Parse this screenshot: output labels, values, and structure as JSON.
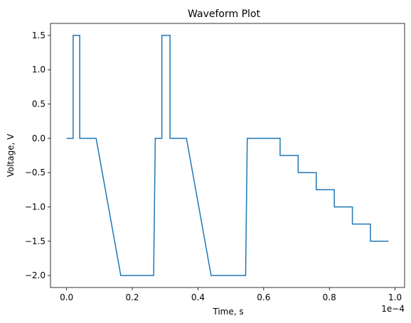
{
  "chart_data": {
    "type": "line",
    "title": "Waveform Plot",
    "xlabel": "Time, s",
    "ylabel": "Voltage, V",
    "x_offset_text": "1e−4",
    "x_scale": 0.0001,
    "xlim": [
      -0.049,
      1.029
    ],
    "ylim": [
      -2.175,
      1.675
    ],
    "x_ticks": [
      0.0,
      0.2,
      0.4,
      0.6,
      0.8,
      1.0
    ],
    "x_tick_labels": [
      "0.0",
      "0.2",
      "0.4",
      "0.6",
      "0.8",
      "1.0"
    ],
    "y_ticks": [
      -2.0,
      -1.5,
      -1.0,
      -0.5,
      0.0,
      0.5,
      1.0,
      1.5
    ],
    "y_tick_labels": [
      "−2.0",
      "−1.5",
      "−1.0",
      "−0.5",
      "0.0",
      "0.5",
      "1.0",
      "1.5"
    ],
    "grid": false,
    "series": [
      {
        "color": "#1f77b4",
        "x": [
          0.0,
          0.02,
          0.02,
          0.04,
          0.04,
          0.09,
          0.165,
          0.265,
          0.27,
          0.27,
          0.29,
          0.29,
          0.315,
          0.315,
          0.365,
          0.44,
          0.545,
          0.55,
          0.55,
          0.65,
          0.65,
          0.705,
          0.705,
          0.76,
          0.76,
          0.815,
          0.815,
          0.87,
          0.87,
          0.925,
          0.925,
          0.98
        ],
        "y": [
          0.0,
          0.0,
          1.5,
          1.5,
          0.0,
          0.0,
          -2.0,
          -2.0,
          0.0,
          0.0,
          0.0,
          1.5,
          1.5,
          0.0,
          0.0,
          -2.0,
          -2.0,
          0.0,
          0.0,
          0.0,
          -0.25,
          -0.25,
          -0.5,
          -0.5,
          -0.75,
          -0.75,
          -1.0,
          -1.0,
          -1.25,
          -1.25,
          -1.5,
          -1.5
        ]
      }
    ]
  }
}
